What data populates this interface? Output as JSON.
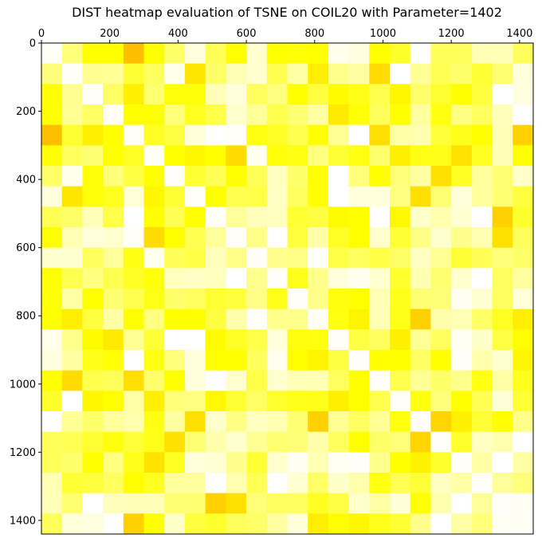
{
  "chart_data": {
    "type": "heatmap",
    "title": "DIST heatmap evaluation of TSNE on COIL20 with Parameter=1402",
    "xlabel": "",
    "ylabel": "",
    "n": 1440,
    "xlim": [
      0,
      1440
    ],
    "ylim": [
      1440,
      0
    ],
    "x_ticks": [
      0,
      200,
      400,
      600,
      800,
      1000,
      1200,
      1400
    ],
    "y_ticks": [
      0,
      200,
      400,
      600,
      800,
      1000,
      1200,
      1400
    ],
    "x_tick_position": "top",
    "colormap": "hot",
    "colors": {
      "low": "#cc0000",
      "mid": "#ffb000",
      "high": "#ffff00",
      "max": "#ffffff"
    },
    "block_size": 72,
    "blocks": 20,
    "grid": false,
    "legend": "none"
  }
}
